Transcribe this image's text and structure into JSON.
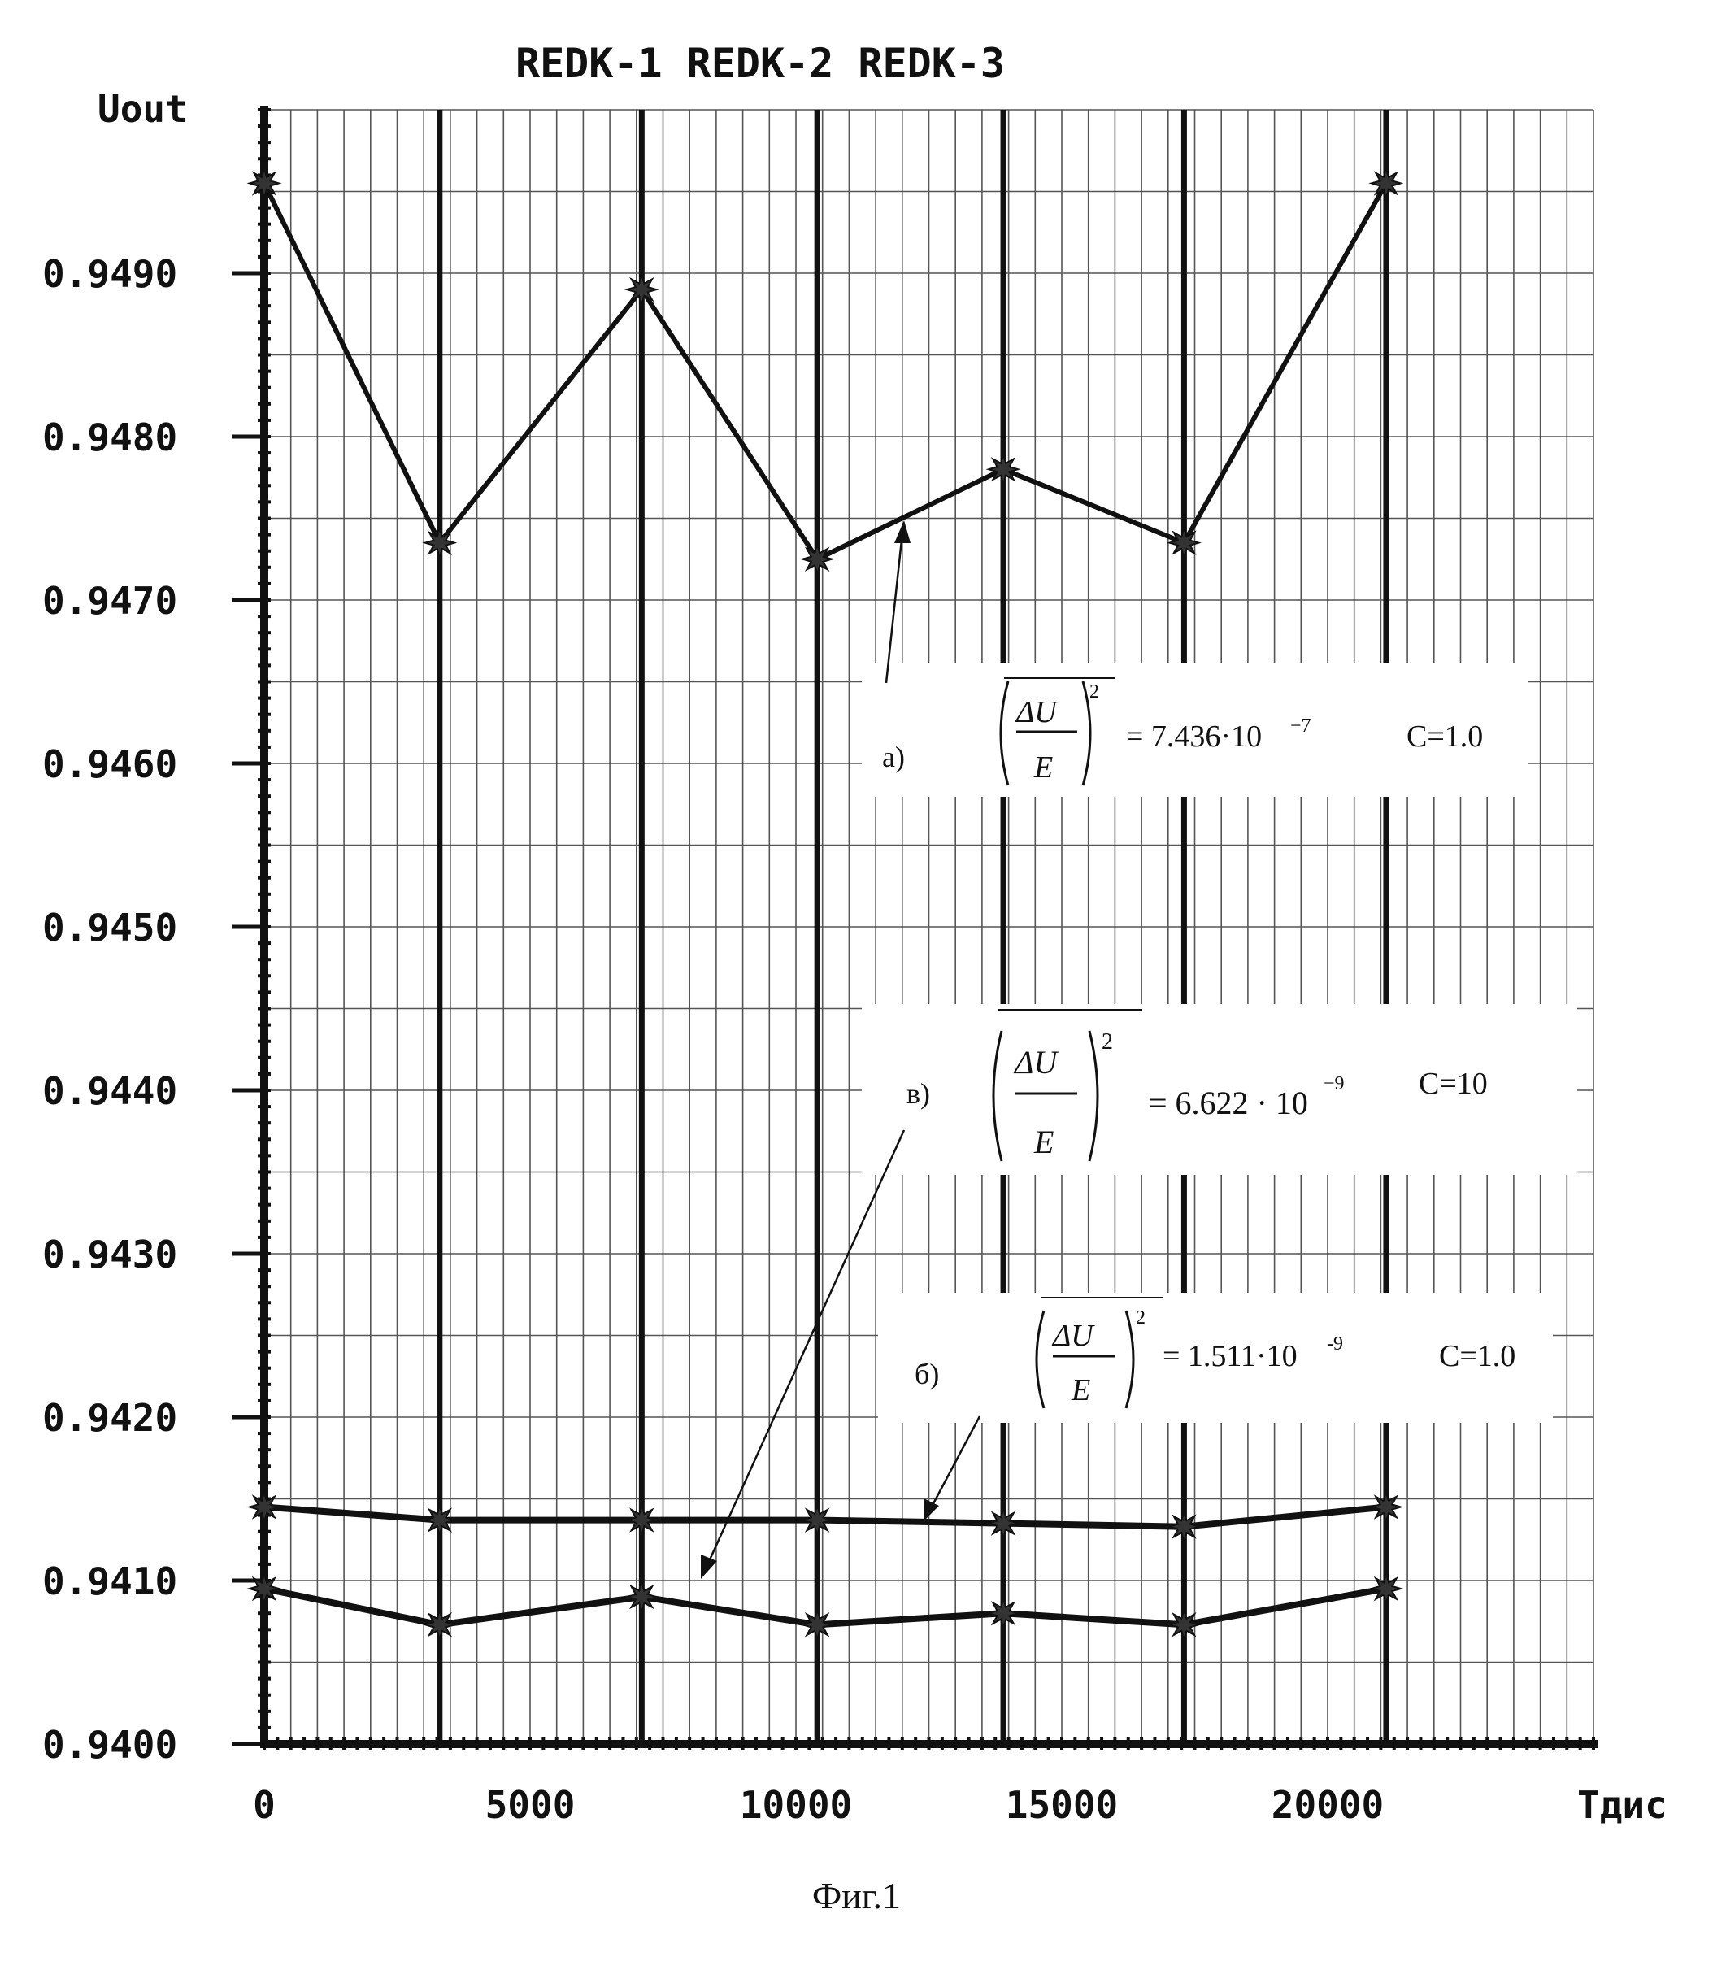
{
  "chart_data": {
    "type": "line",
    "title": "REDK-1 REDK-2 REDK-3",
    "ylabel": "Uout",
    "xlabel": "Tдис",
    "xlim": [
      0,
      25000
    ],
    "ylim": [
      0.94,
      0.95
    ],
    "grid": true,
    "y_ticks": [
      "0.9400",
      "0.9410",
      "0.9420",
      "0.9430",
      "0.9440",
      "0.9450",
      "0.9460",
      "0.9470",
      "0.9480",
      "0.9490"
    ],
    "y_tick_values": [
      0.94,
      0.941,
      0.942,
      0.943,
      0.944,
      0.945,
      0.946,
      0.947,
      0.948,
      0.949
    ],
    "x_ticks": [
      "0",
      "5000",
      "10000",
      "15000",
      "20000"
    ],
    "x_tick_values": [
      0,
      5000,
      10000,
      15000,
      20000
    ],
    "drop_line_x": [
      3300,
      7100,
      10400,
      13900,
      17300,
      21100
    ],
    "series": [
      {
        "label": "а)",
        "x": [
          0,
          3300,
          7100,
          10400,
          13900,
          17300,
          21100
        ],
        "y": [
          0.94955,
          0.94735,
          0.9489,
          0.94725,
          0.9478,
          0.94735,
          0.94955
        ]
      },
      {
        "label": "б)",
        "x": [
          0,
          3300,
          7100,
          10400,
          13900,
          17300,
          21100
        ],
        "y": [
          0.94145,
          0.94137,
          0.94137,
          0.94137,
          0.94135,
          0.94133,
          0.94145
        ]
      },
      {
        "label": "в)",
        "x": [
          0,
          3300,
          7100,
          10400,
          13900,
          17300,
          21100
        ],
        "y": [
          0.94095,
          0.94073,
          0.9409,
          0.94073,
          0.9408,
          0.94073,
          0.94095
        ]
      }
    ],
    "annotations": [
      {
        "label": "а)",
        "delta": "ΔU",
        "denom": "E",
        "exp": "2",
        "value": "= 7.436·10",
        "power": "−7",
        "c": "C=1.0"
      },
      {
        "label": "в)",
        "delta": "ΔU",
        "denom": "E",
        "exp": "2",
        "value": "= 6.622 · 10",
        "power": "−9",
        "c": "C=10"
      },
      {
        "label": "б)",
        "delta": "ΔU",
        "denom": "E",
        "exp": "2",
        "value": "= 1.511·10",
        "power": "-9",
        "c": "C=1.0"
      }
    ],
    "caption": "Фиг.1"
  }
}
